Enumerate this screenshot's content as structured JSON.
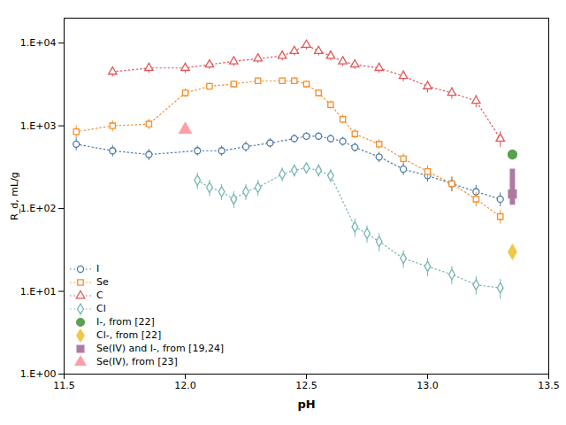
{
  "chart_data": {
    "type": "line",
    "xlabel": "pH",
    "ylabel": "R_d, mL/g",
    "xlim": [
      11.5,
      13.5
    ],
    "xticks": [
      11.5,
      {
        "value": 12,
        "label": "12.0"
      },
      12.5,
      {
        "value": 13,
        "label": "13.0"
      },
      13.5
    ],
    "ylim": [
      1,
      20000
    ],
    "yticks": [
      {
        "value": 1,
        "label": "1.E+00"
      },
      {
        "value": 10,
        "label": "1.E+01"
      },
      {
        "value": 100,
        "label": "1.E+02"
      },
      {
        "value": 1000,
        "label": "1.E+03"
      },
      {
        "value": 10000,
        "label": "1.E+04"
      }
    ],
    "log": "y",
    "grid": false,
    "legend": "lower left",
    "series": [
      {
        "name": "I",
        "type": "line",
        "marker": "circle",
        "line_style": "dotted",
        "x": [
          11.55,
          11.7,
          11.85,
          12.05,
          12.15,
          12.25,
          12.35,
          12.45,
          12.5,
          12.55,
          12.6,
          12.65,
          12.7,
          12.8,
          12.9,
          13.0,
          13.1,
          13.2,
          13.3
        ],
        "values": [
          600,
          500,
          450,
          500,
          500,
          560,
          620,
          700,
          750,
          750,
          700,
          650,
          550,
          420,
          300,
          250,
          200,
          160,
          130
        ],
        "yerr": [
          100,
          80,
          70,
          70,
          70,
          80,
          80,
          80,
          80,
          80,
          80,
          80,
          70,
          60,
          50,
          40,
          40,
          30,
          25
        ]
      },
      {
        "name": "Se",
        "type": "line",
        "marker": "square",
        "line_style": "dotted",
        "x": [
          11.55,
          11.7,
          11.85,
          12.0,
          12.1,
          12.2,
          12.3,
          12.4,
          12.45,
          12.5,
          12.55,
          12.6,
          12.65,
          12.7,
          12.8,
          12.9,
          13.0,
          13.1,
          13.2,
          13.3
        ],
        "values": [
          850,
          1000,
          1050,
          2500,
          3000,
          3200,
          3500,
          3500,
          3500,
          3200,
          2500,
          1800,
          1200,
          800,
          600,
          400,
          280,
          200,
          130,
          80
        ],
        "yerr": [
          150,
          150,
          150,
          300,
          300,
          300,
          300,
          300,
          300,
          300,
          250,
          200,
          150,
          100,
          80,
          60,
          50,
          40,
          25,
          15
        ]
      },
      {
        "name": "C",
        "type": "line",
        "marker": "triangle",
        "line_style": "dotted",
        "x": [
          11.7,
          11.85,
          12.0,
          12.1,
          12.2,
          12.3,
          12.4,
          12.45,
          12.5,
          12.55,
          12.6,
          12.65,
          12.7,
          12.8,
          12.9,
          13.0,
          13.1,
          13.2,
          13.3
        ],
        "values": [
          4500,
          5000,
          5000,
          5500,
          6000,
          6500,
          7000,
          8000,
          9500,
          8000,
          7000,
          6000,
          5500,
          5000,
          4000,
          3000,
          2500,
          2000,
          700
        ],
        "yerr": [
          600,
          700,
          700,
          700,
          800,
          800,
          900,
          1000,
          1200,
          1000,
          900,
          800,
          700,
          700,
          600,
          500,
          400,
          350,
          150
        ]
      },
      {
        "name": "Cl",
        "type": "line",
        "marker": "diamond",
        "line_style": "dotted",
        "x": [
          12.05,
          12.1,
          12.15,
          12.2,
          12.25,
          12.3,
          12.4,
          12.45,
          12.5,
          12.55,
          12.6,
          12.7,
          12.75,
          12.8,
          12.9,
          13.0,
          13.1,
          13.2,
          13.3
        ],
        "values": [
          220,
          180,
          160,
          130,
          160,
          180,
          260,
          290,
          310,
          290,
          250,
          60,
          50,
          40,
          25,
          20,
          16,
          12,
          11
        ],
        "yerr": [
          50,
          40,
          35,
          30,
          35,
          40,
          50,
          50,
          50,
          50,
          45,
          15,
          12,
          10,
          6,
          5,
          4,
          3,
          3
        ]
      },
      {
        "name": "I-, from [22]",
        "type": "scatter",
        "marker": "circle",
        "x": [
          13.35
        ],
        "values": [
          450
        ]
      },
      {
        "name": "Cl-, from [22]",
        "type": "scatter",
        "marker": "diamond",
        "x": [
          13.35
        ],
        "values": [
          30
        ]
      },
      {
        "name": "Se(IV) and I-, from [19,24]",
        "type": "scatter",
        "marker": "square",
        "x": [
          13.35
        ],
        "values": [
          150
        ],
        "y_low": [
          110
        ],
        "y_high": [
          300
        ]
      },
      {
        "name": "Se(IV), from [23]",
        "type": "scatter",
        "marker": "triangle",
        "x": [
          12.0
        ],
        "values": [
          900
        ]
      }
    ]
  }
}
